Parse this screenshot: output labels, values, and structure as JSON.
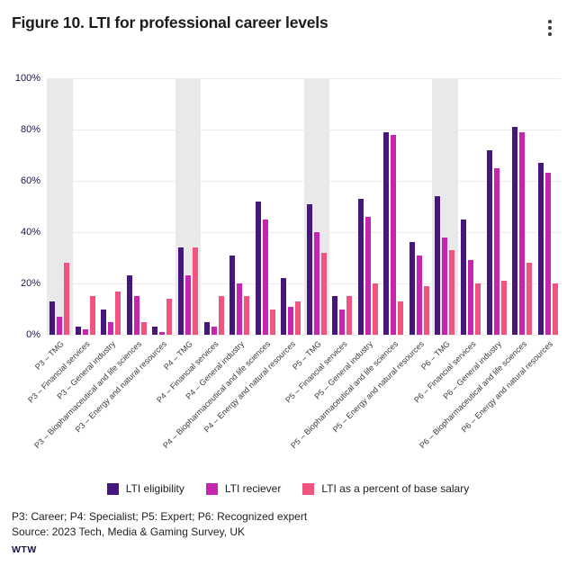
{
  "header": {
    "title": "Figure 10. LTI for professional career levels"
  },
  "chart_data": {
    "type": "bar",
    "title": "Figure 10. LTI for professional career levels",
    "categories": [
      "P3 – TMG",
      "P3 – Financial services",
      "P3 – General industry",
      "P3 – Biopharmaceutical and life sciences",
      "P3 – Energy and natural resources",
      "P4 – TMG",
      "P4 – Financial services",
      "P4 – General industry",
      "P4 – Biopharmaceutical and life sciences",
      "P4 – Energy and natural resources",
      "P5 – TMG",
      "P5 – Financial services",
      "P5 – General industry",
      "P5 – Biopharmaceutical and life sciences",
      "P5 – Energy and natural resources",
      "P6 – TMG",
      "P6 – Financial services",
      "P6 – General industry",
      "P6 – Biopharmaceutical and life sciences",
      "P6 – Energy and natural resources"
    ],
    "series": [
      {
        "name": "LTI eligibility",
        "color": "#47157E",
        "values": [
          13,
          3,
          10,
          23,
          3,
          34,
          5,
          31,
          52,
          22,
          51,
          15,
          53,
          79,
          36,
          54,
          45,
          72,
          81,
          67
        ]
      },
      {
        "name": "LTI reciever",
        "color": "#C724B1",
        "values": [
          7,
          2,
          5,
          15,
          1,
          23,
          3,
          20,
          45,
          11,
          40,
          10,
          46,
          78,
          31,
          38,
          29,
          65,
          79,
          63
        ]
      },
      {
        "name": "LTI as a percent of base salary",
        "color": "#F1557F",
        "values": [
          28,
          15,
          17,
          5,
          14,
          34,
          15,
          15,
          10,
          13,
          32,
          15,
          20,
          13,
          19,
          33,
          20,
          21,
          28,
          20
        ]
      }
    ],
    "ylim": [
      0,
      100
    ],
    "yticks": [
      "100%",
      "80%",
      "60%",
      "40%",
      "20%",
      "0%"
    ],
    "ylabel": "",
    "xlabel": "",
    "grid": "horizontal",
    "legend_position": "bottom",
    "highlight_band_indices": [
      0,
      5,
      10,
      15
    ],
    "highlight_band_color": "#E9E9E9"
  },
  "legend": {
    "items": [
      {
        "label": "LTI eligibility",
        "color": "#47157E"
      },
      {
        "label": "LTI reciever",
        "color": "#C724B1"
      },
      {
        "label": "LTI as a percent of base salary",
        "color": "#F1557F"
      }
    ]
  },
  "footer": {
    "note": "P3: Career; P4: Specialist; P5: Expert; P6: Recognized expert",
    "source": "Source: 2023 Tech, Media & Gaming Survey, UK",
    "logo": "WTW"
  }
}
